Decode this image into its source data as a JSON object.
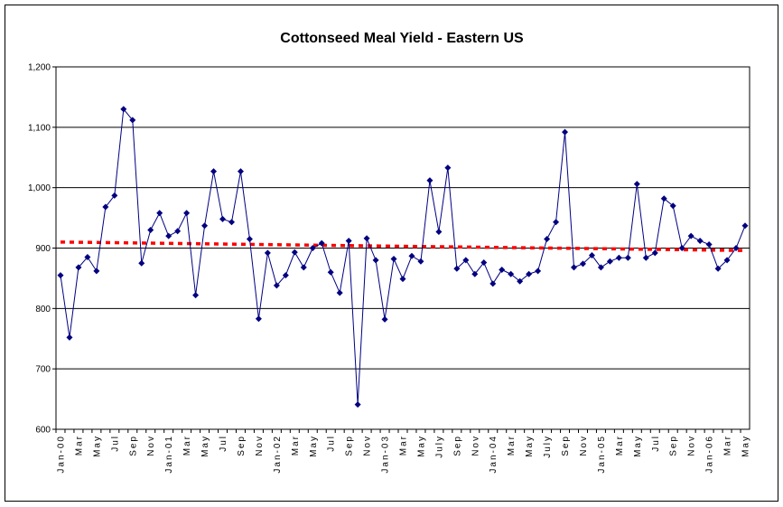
{
  "chart_data": {
    "type": "line",
    "title": "Cottonseed Meal Yield - Eastern US",
    "categories": [
      "Jan-00",
      null,
      "Mar",
      null,
      "May",
      null,
      "Jul",
      null,
      "Sep",
      null,
      "Nov",
      null,
      "Jan-01",
      null,
      "Mar",
      null,
      "May",
      null,
      "Jul",
      null,
      "Sep",
      null,
      "Nov",
      null,
      "Jan-02",
      null,
      "Mar",
      null,
      "May",
      null,
      "Jul",
      null,
      "Sep",
      null,
      "Nov",
      null,
      "Jan-03",
      null,
      "Mar",
      null,
      "May",
      null,
      "July",
      null,
      "Sep",
      null,
      "Nov",
      null,
      "Jan-04",
      null,
      "Mar",
      null,
      "May",
      null,
      "July",
      null,
      "Sep",
      null,
      "Nov",
      null,
      "Jan-05",
      null,
      "Mar",
      null,
      "May",
      null,
      "Jul",
      null,
      "Sep",
      null,
      "Nov",
      null,
      "Jan-06",
      null,
      "Mar",
      null,
      "May"
    ],
    "series": [
      {
        "color": "#000080",
        "values": [
          855,
          752,
          868,
          885,
          862,
          968,
          987,
          1130,
          1112,
          875,
          930,
          958,
          920,
          928,
          958,
          822,
          937,
          1027,
          948,
          943,
          1027,
          915,
          783,
          892,
          838,
          855,
          893,
          868,
          900,
          908,
          860,
          826,
          912,
          641,
          916,
          880,
          782,
          882,
          849,
          887,
          878,
          1012,
          927,
          1033,
          866,
          880,
          857,
          876,
          841,
          864,
          857,
          845,
          857,
          862,
          915,
          943,
          1092,
          868,
          874,
          888,
          868,
          878,
          884,
          884,
          1006,
          884,
          892,
          982,
          970,
          900,
          920,
          912,
          906,
          866,
          880,
          900,
          937
        ]
      }
    ],
    "trend": {
      "color": "#ff0000",
      "values": [
        910,
        896
      ]
    },
    "ylim": [
      600,
      1200
    ],
    "yticks": [
      600,
      700,
      800,
      900,
      {
        "value": 1000,
        "label": "1,000"
      },
      {
        "value": 1100,
        "label": "1,100"
      },
      {
        "value": 1200,
        "label": "1,200"
      }
    ],
    "grid": true
  }
}
